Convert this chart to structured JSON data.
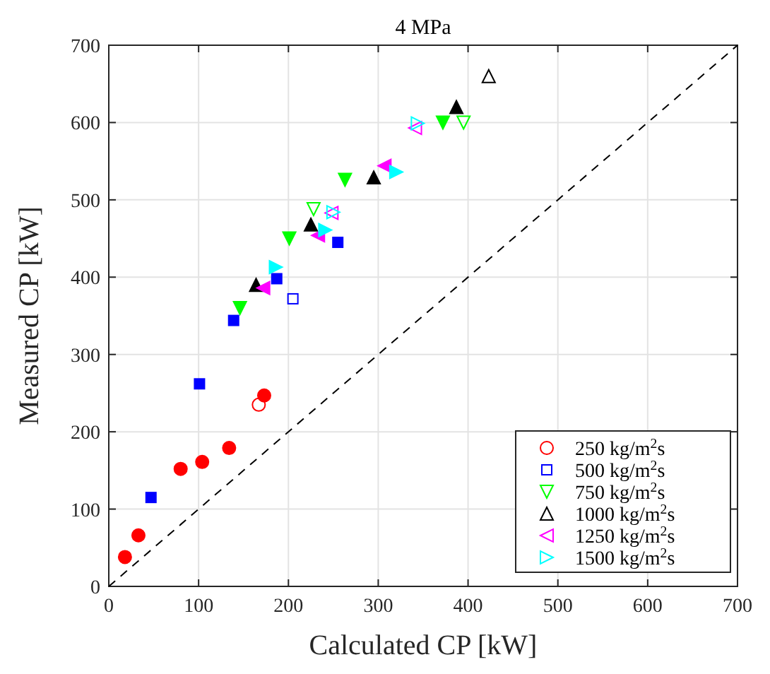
{
  "chart_data": {
    "type": "scatter",
    "title": "4 MPa",
    "xlabel": "Calculated CP [kW]",
    "ylabel": "Measured CP [kW]",
    "xlim": [
      0,
      700
    ],
    "ylim": [
      0,
      700
    ],
    "xticks": [
      0,
      100,
      200,
      300,
      400,
      500,
      600,
      700
    ],
    "yticks": [
      0,
      100,
      200,
      300,
      400,
      500,
      600,
      700
    ],
    "grid": true,
    "legend": "bottom right",
    "series": [
      {
        "name": "250 kg/m$^{2}$s",
        "color": "#ff0000",
        "marker": "circle-open",
        "x": [
          167
        ],
        "values": [
          235
        ]
      },
      {
        "name": "500 kg/m$^{2}$s",
        "color": "#0000ff",
        "marker": "square-open",
        "x": [
          205
        ],
        "values": [
          372
        ]
      },
      {
        "name": "750 kg/m$^{2}$s",
        "color": "#00ff00",
        "marker": "triangle-down-open",
        "x": [
          228,
          395
        ],
        "values": [
          488,
          600
        ]
      },
      {
        "name": "1000 kg/m$^{2}$s",
        "color": "#000000",
        "marker": "triangle-open",
        "x": [
          423
        ],
        "values": [
          660
        ]
      },
      {
        "name": "1250 kg/m$^{2}$s",
        "color": "#ff00ff",
        "marker": "triangle-left-open",
        "x": [
          248,
          341
        ],
        "values": [
          483,
          593
        ]
      },
      {
        "name": "1500 kg/m$^{2}$s",
        "color": "#00ffff",
        "marker": "triangle-right-open",
        "x": [
          250,
          344
        ],
        "values": [
          484,
          599
        ]
      },
      {
        "color": "#ff0000",
        "marker": "circle",
        "x": [
          18,
          33,
          80,
          104,
          134,
          173
        ],
        "values": [
          38,
          66,
          152,
          161,
          179,
          247
        ]
      },
      {
        "color": "#0000ff",
        "marker": "square",
        "x": [
          47,
          101,
          139,
          187,
          255
        ],
        "values": [
          115,
          262,
          344,
          398,
          445
        ]
      },
      {
        "color": "#00ff00",
        "marker": "triangle-down",
        "x": [
          146,
          201,
          263,
          372
        ],
        "values": [
          360,
          450,
          526,
          600
        ]
      },
      {
        "color": "#000000",
        "marker": "triangle",
        "x": [
          164,
          225,
          295,
          387
        ],
        "values": [
          390,
          468,
          529,
          620
        ]
      },
      {
        "color": "#ff00ff",
        "marker": "triangle-left",
        "x": [
          172,
          233,
          307
        ],
        "values": [
          386,
          454,
          544
        ]
      },
      {
        "color": "#00ffff",
        "marker": "triangle-right",
        "x": [
          186,
          241,
          320
        ],
        "values": [
          413,
          461,
          536
        ]
      },
      {
        "type": "line",
        "color": "#000000",
        "line_style": "dashed",
        "marker": "none",
        "x": [
          0,
          700
        ],
        "values": [
          0,
          700
        ]
      }
    ]
  }
}
